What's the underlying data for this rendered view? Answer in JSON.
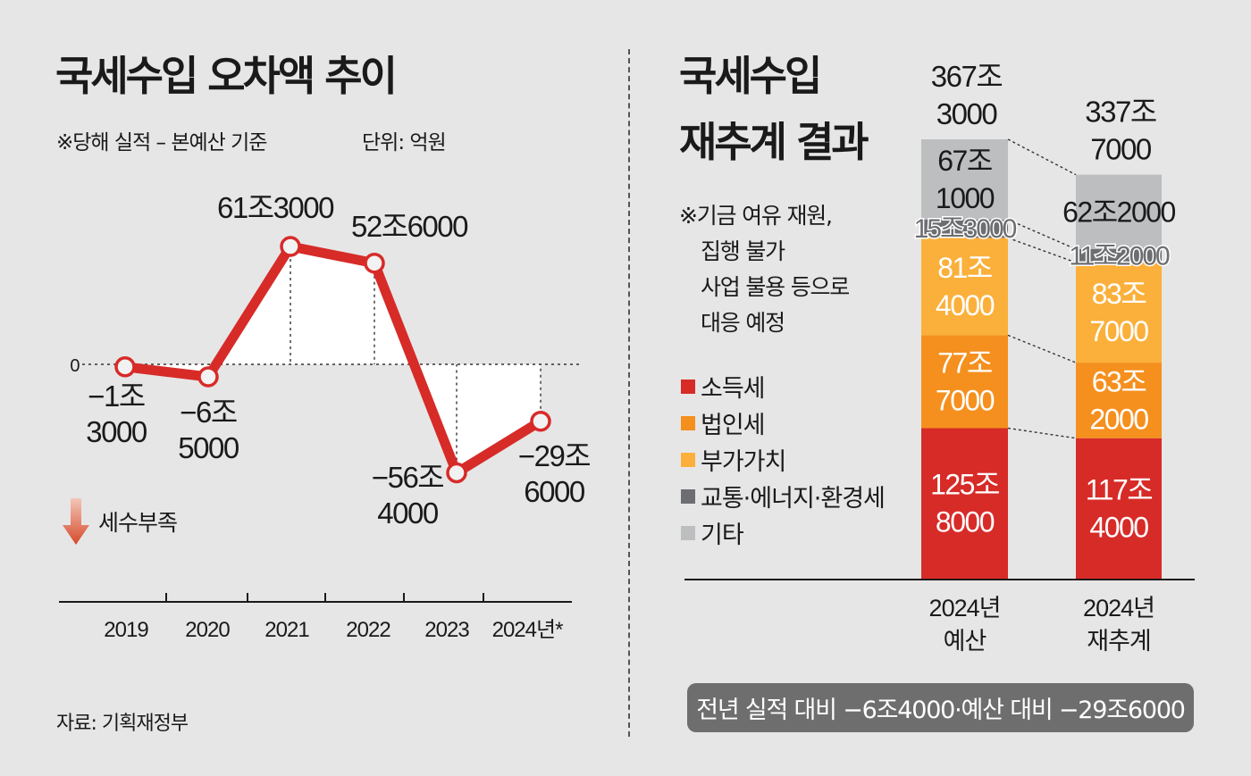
{
  "left": {
    "title": "국세수입 오차액 추이",
    "note": "※당해 실적 – 본예산 기준",
    "unit": "단위: 억원",
    "zero_label": "0",
    "legend_label": "세수부족",
    "source": "자료: 기획재정부"
  },
  "right": {
    "title_line1": "국세수입",
    "title_line2": "재추계 결과",
    "note_lines": [
      "※기금 여유 재원,",
      "집행 불가",
      "사업 불용 등으로",
      "대응 예정"
    ],
    "legend": [
      {
        "label": "소득세",
        "color": "#d72b28"
      },
      {
        "label": "법인세",
        "color": "#f5901e"
      },
      {
        "label": "부가가치",
        "color": "#fbb03b"
      },
      {
        "label": "교통·에너지·환경세",
        "color": "#6d6e71"
      },
      {
        "label": "기타",
        "color": "#bcbec0"
      }
    ],
    "summary": "전년 실적 대비 −6조4000·예산 대비 −29조6000"
  },
  "chart_data": [
    {
      "type": "line",
      "title": "국세수입 오차액 추이",
      "subtitle": "※당해 실적 – 본예산 기준",
      "unit": "억원",
      "categories": [
        "2019",
        "2020",
        "2021",
        "2022",
        "2023",
        "2024년*"
      ],
      "values": [
        -13000,
        -65000,
        613000,
        526000,
        -564000,
        -296000
      ],
      "data_labels": [
        [
          "−1조",
          "3000"
        ],
        [
          "−6조",
          "5000"
        ],
        [
          "61조3000"
        ],
        [
          "52조6000"
        ],
        [
          "−56조",
          "4000"
        ],
        [
          "−29조",
          "6000"
        ]
      ],
      "colors": {
        "line": "#d72b28"
      }
    },
    {
      "type": "bar",
      "stacked": true,
      "title": "국세수입 재추계 결과",
      "unit": "억원",
      "categories": [
        [
          "2024년",
          "예산"
        ],
        [
          "2024년",
          "재추계"
        ]
      ],
      "totals": [
        3673000,
        3377000
      ],
      "total_labels": [
        [
          "367조",
          "3000"
        ],
        [
          "337조",
          "7000"
        ]
      ],
      "series": [
        {
          "name": "소득세",
          "values": [
            1258000,
            1174000
          ],
          "labels": [
            [
              "125조",
              "8000"
            ],
            [
              "117조",
              "4000"
            ]
          ],
          "color": "#d72b28"
        },
        {
          "name": "법인세",
          "values": [
            777000,
            632000
          ],
          "labels": [
            [
              "77조",
              "7000"
            ],
            [
              "63조",
              "2000"
            ]
          ],
          "color": "#f5901e"
        },
        {
          "name": "부가가치",
          "values": [
            814000,
            837000
          ],
          "labels": [
            [
              "81조",
              "4000"
            ],
            [
              "83조",
              "7000"
            ]
          ],
          "color": "#fbb03b"
        },
        {
          "name": "교통·에너지·환경세",
          "values": [
            153000,
            112000
          ],
          "labels": [
            [
              "15조3000"
            ],
            [
              "11조2000"
            ]
          ],
          "color": "#6d6e71"
        },
        {
          "name": "기타",
          "values": [
            671000,
            622000
          ],
          "labels": [
            [
              "67조",
              "1000"
            ],
            [
              "62조2000"
            ]
          ],
          "color": "#bcbec0"
        }
      ]
    }
  ]
}
